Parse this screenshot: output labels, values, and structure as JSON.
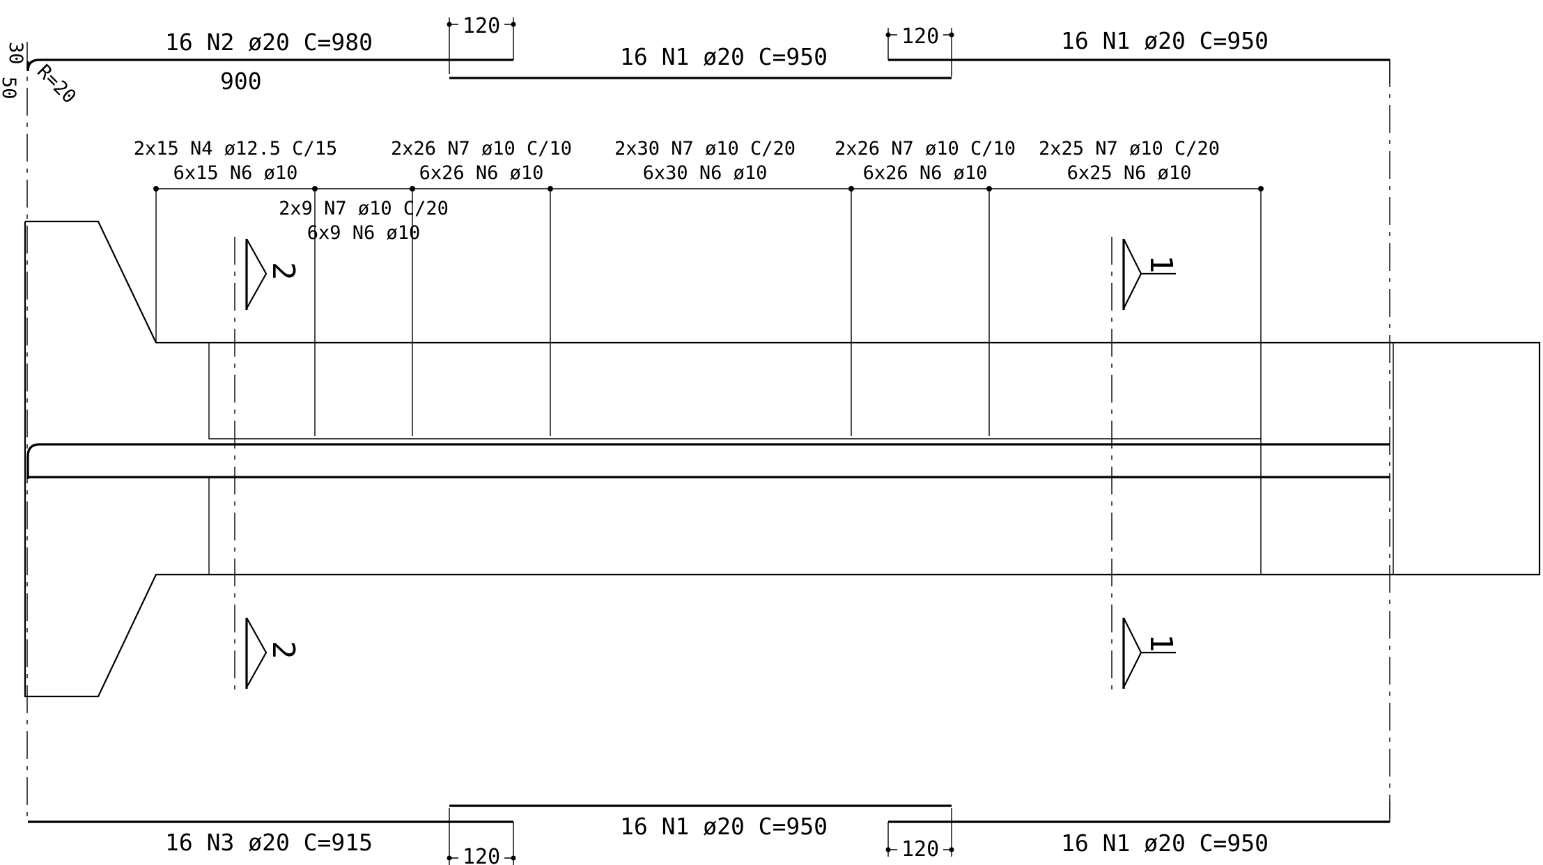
{
  "top_bars": {
    "left_label": "16 N2 ø20 C=980",
    "left_length": "900",
    "middle_label": "16 N1 ø20 C=950",
    "right_label": "16 N1 ø20 C=950",
    "lap_left": "120",
    "lap_right": "120",
    "hook_dim_a": "30",
    "hook_dim_b": "50",
    "hook_radius": "R=20"
  },
  "bottom_bars": {
    "left_label": "16 N3 ø20 C=915",
    "middle_label": "16 N1 ø20 C=950",
    "right_label": "16 N1 ø20 C=950",
    "lap_left": "120",
    "lap_right": "120"
  },
  "stirrups": [
    {
      "line1": "2x15 N4 ø12.5 C/15",
      "line2": "6x15 N6 ø10"
    },
    {
      "line1": "2x9 N7 ø10 C/20",
      "line2": "6x9 N6 ø10"
    },
    {
      "line1": "2x26 N7 ø10 C/10",
      "line2": "6x26 N6 ø10"
    },
    {
      "line1": "2x30 N7 ø10 C/20",
      "line2": "6x30 N6 ø10"
    },
    {
      "line1": "2x26 N7 ø10 C/10",
      "line2": "6x26 N6 ø10"
    },
    {
      "line1": "2x25 N7 ø10 C/20",
      "line2": "6x25 N6 ø10"
    }
  ],
  "sections": {
    "left_top": "2",
    "left_bottom": "2",
    "right_top": "1",
    "right_bottom": "1"
  }
}
